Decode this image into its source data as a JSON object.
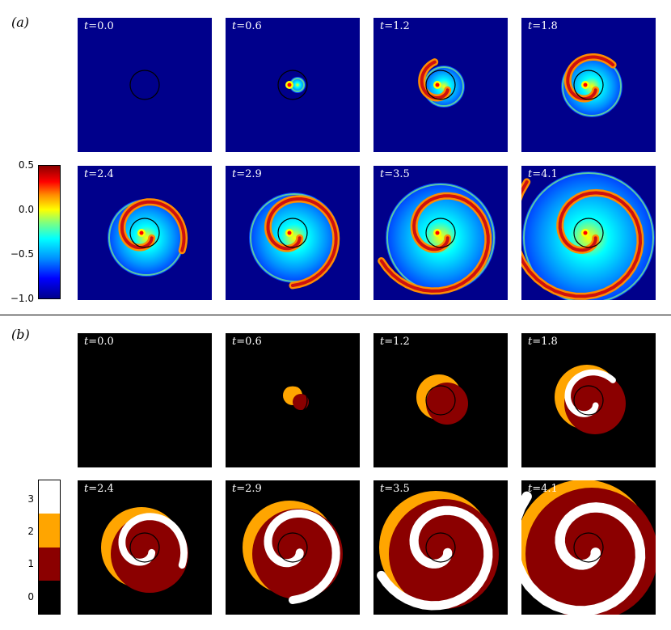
{
  "part_a": {
    "label": "(a)",
    "colorbar_ticks": [
      "0.5",
      "0.0",
      "−0.5",
      "−1.0"
    ],
    "panels": [
      {
        "t_prefix": "t",
        "t_value": "=0.0",
        "stage": 0
      },
      {
        "t_prefix": "t",
        "t_value": "=0.6",
        "stage": 1
      },
      {
        "t_prefix": "t",
        "t_value": "=1.2",
        "stage": 2
      },
      {
        "t_prefix": "t",
        "t_value": "=1.8",
        "stage": 3
      },
      {
        "t_prefix": "t",
        "t_value": "=2.4",
        "stage": 4
      },
      {
        "t_prefix": "t",
        "t_value": "=2.9",
        "stage": 5
      },
      {
        "t_prefix": "t",
        "t_value": "=3.5",
        "stage": 6
      },
      {
        "t_prefix": "t",
        "t_value": "=4.1",
        "stage": 7
      }
    ]
  },
  "part_b": {
    "label": "(b)",
    "colorbar_ticks": [
      "3",
      "2",
      "1",
      "0"
    ],
    "colorbar_colors": [
      "#ffffff",
      "#ffa500",
      "#8b0000",
      "#000000"
    ],
    "panels": [
      {
        "t_prefix": "t",
        "t_value": "=0.0",
        "stage": 0
      },
      {
        "t_prefix": "t",
        "t_value": "=0.6",
        "stage": 1
      },
      {
        "t_prefix": "t",
        "t_value": "=1.2",
        "stage": 2
      },
      {
        "t_prefix": "t",
        "t_value": "=1.8",
        "stage": 3
      },
      {
        "t_prefix": "t",
        "t_value": "=2.4",
        "stage": 4
      },
      {
        "t_prefix": "t",
        "t_value": "=2.9",
        "stage": 5
      },
      {
        "t_prefix": "t",
        "t_value": "=3.5",
        "stage": 6
      },
      {
        "t_prefix": "t",
        "t_value": "=4.1",
        "stage": 7
      }
    ]
  },
  "colors": {
    "field_background": "#00008b",
    "state_background": "#000000",
    "state_dark_red": "#8b0000",
    "state_orange": "#ffa500",
    "state_white": "#ffffff"
  }
}
